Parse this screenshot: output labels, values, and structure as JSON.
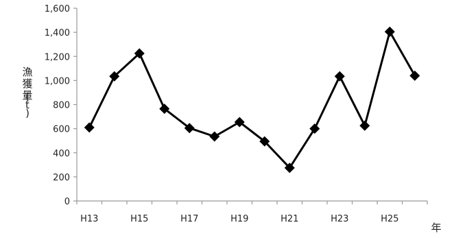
{
  "chart_data": {
    "type": "line",
    "x": [
      "H13",
      "H14",
      "H15",
      "H16",
      "H17",
      "H18",
      "H19",
      "H20",
      "H21",
      "H22",
      "H23",
      "H24",
      "H25",
      "H26"
    ],
    "x_tick_labels": [
      "H13",
      "H15",
      "H17",
      "H19",
      "H21",
      "H23",
      "H25"
    ],
    "series": [
      {
        "values": [
          610,
          1035,
          1225,
          765,
          605,
          535,
          655,
          495,
          275,
          600,
          1035,
          625,
          1405,
          1040
        ]
      }
    ],
    "ylabel": "漁獲量(t)",
    "xlabel": "年",
    "ylim": [
      0,
      1600
    ],
    "yticks": [
      0,
      200,
      400,
      600,
      800,
      1000,
      1200,
      1400,
      1600
    ],
    "ytick_labels": [
      "0",
      "200",
      "400",
      "600",
      "800",
      "1,000",
      "1,200",
      "1,400",
      "1,600"
    ],
    "grid": false,
    "legend": "none",
    "marker": "diamond",
    "line_color": "#000000"
  }
}
